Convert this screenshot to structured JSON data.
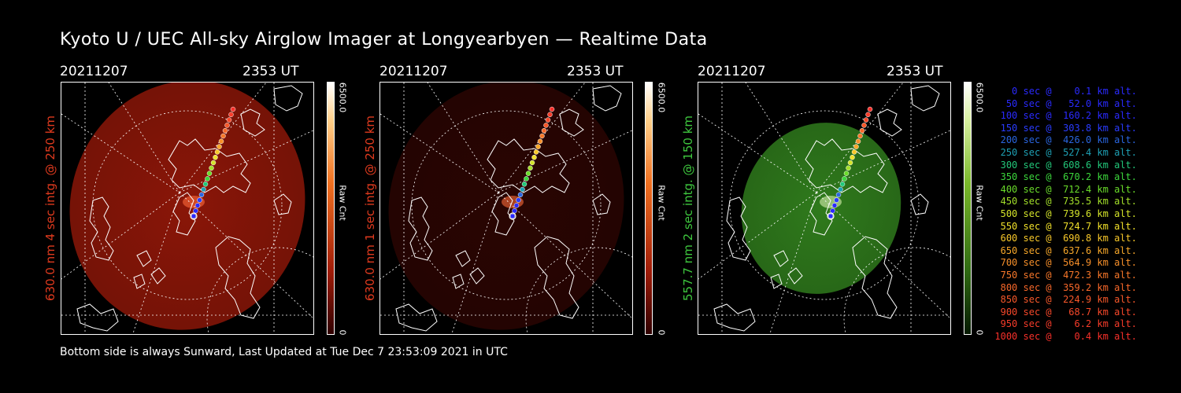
{
  "title": "Kyoto U / UEC All-sky Airglow Imager at Longyearbyen — Realtime Data",
  "footer": "Bottom side is always Sunward, Last Updated at Tue Dec  7 23:53:09 2021 in UTC",
  "panels": [
    {
      "date": "20211207",
      "time": "2353 UT",
      "ylabel": "630.0 nm 4 sec intg. @ 250 km",
      "label_color": "#e03a1e",
      "image_color": "#8a1608",
      "cbar_max": "6500.0",
      "cbar_min": "0",
      "cbar_unit": "Raw Cnt"
    },
    {
      "date": "20211207",
      "time": "2353 UT",
      "ylabel": "630.0 nm 1 sec intg. @ 250 km",
      "label_color": "#e03a1e",
      "image_color": "#2a0502",
      "cbar_max": "6500.0",
      "cbar_min": "0",
      "cbar_unit": "Raw Cnt"
    },
    {
      "date": "20211207",
      "time": "2353 UT",
      "ylabel": "557.7 nm 2 sec intg. @ 150 km",
      "label_color": "#3ec73e",
      "image_color": "#2f7a1c",
      "cbar_max": "6500.0",
      "cbar_min": "0",
      "cbar_unit": "Raw Cnt"
    }
  ],
  "legend": [
    {
      "text": "   0 sec @    0.1 km alt.",
      "color": "#2a2aff"
    },
    {
      "text": "  50 sec @   52.0 km alt.",
      "color": "#2a2aff"
    },
    {
      "text": " 100 sec @  160.2 km alt.",
      "color": "#2a2aff"
    },
    {
      "text": " 150 sec @  303.8 km alt.",
      "color": "#2a3cff"
    },
    {
      "text": " 200 sec @  426.0 km alt.",
      "color": "#2a66e0"
    },
    {
      "text": " 250 sec @  527.4 km alt.",
      "color": "#1ea0b4"
    },
    {
      "text": " 300 sec @  608.6 km alt.",
      "color": "#22c87a"
    },
    {
      "text": " 350 sec @  670.2 km alt.",
      "color": "#3cd83c"
    },
    {
      "text": " 400 sec @  712.4 km alt.",
      "color": "#6adc2a"
    },
    {
      "text": " 450 sec @  735.5 km alt.",
      "color": "#a4e02a"
    },
    {
      "text": " 500 sec @  739.6 km alt.",
      "color": "#d4e42a"
    },
    {
      "text": " 550 sec @  724.7 km alt.",
      "color": "#f0e02a"
    },
    {
      "text": " 600 sec @  690.8 km alt.",
      "color": "#f8c82a"
    },
    {
      "text": " 650 sec @  637.6 km alt.",
      "color": "#f8a82a"
    },
    {
      "text": " 700 sec @  564.9 km alt.",
      "color": "#f8902a"
    },
    {
      "text": " 750 sec @  472.3 km alt.",
      "color": "#f8782a"
    },
    {
      "text": " 800 sec @  359.2 km alt.",
      "color": "#f8682a"
    },
    {
      "text": " 850 sec @  224.9 km alt.",
      "color": "#f8582a"
    },
    {
      "text": " 900 sec @   68.7 km alt.",
      "color": "#f8482a"
    },
    {
      "text": " 950 sec @    6.2 km alt.",
      "color": "#f83c2a"
    },
    {
      "text": "1000 sec @    0.4 km alt.",
      "color": "#f8302a"
    }
  ]
}
